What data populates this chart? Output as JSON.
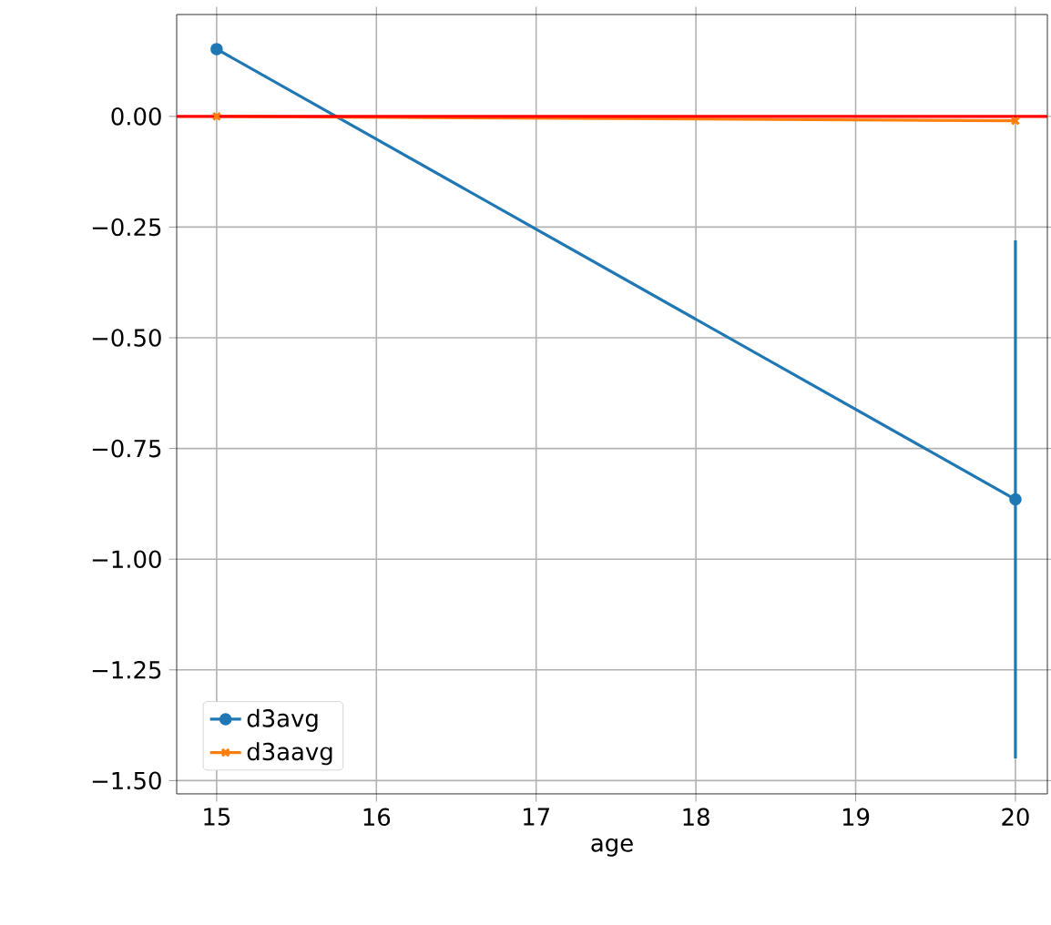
{
  "chart_data": {
    "type": "line",
    "xlabel": "age",
    "x": [
      15,
      20
    ],
    "series": [
      {
        "name": "d3avg",
        "color": "#1f77b4",
        "values": [
          0.152,
          -0.865
        ],
        "errors": [
          null,
          0.585
        ],
        "marker": "circle"
      },
      {
        "name": "d3aavg",
        "color": "#ff7f0e",
        "values": [
          0.0,
          -0.01
        ],
        "marker": "cross"
      }
    ],
    "xlim": [
      14.75,
      20.2
    ],
    "ylim": [
      -1.53,
      0.23
    ],
    "xticks": [
      15,
      16,
      17,
      18,
      19,
      20
    ],
    "yticks": [
      {
        "value": 0,
        "label": "0.00"
      },
      {
        "value": -0.25,
        "label": "−0.25"
      },
      {
        "value": -0.5,
        "label": "−0.50"
      },
      {
        "value": -0.75,
        "label": "−0.75"
      },
      {
        "value": -1,
        "label": "−1.00"
      },
      {
        "value": -1.25,
        "label": "−1.25"
      },
      {
        "value": -1.5,
        "label": "−1.50"
      }
    ],
    "ref_lines": [
      {
        "axis": "y",
        "value": 0,
        "color": "#ff0000",
        "line_style": "solid"
      }
    ],
    "grid": true,
    "legend": "bottom left",
    "line_style": "solid"
  }
}
